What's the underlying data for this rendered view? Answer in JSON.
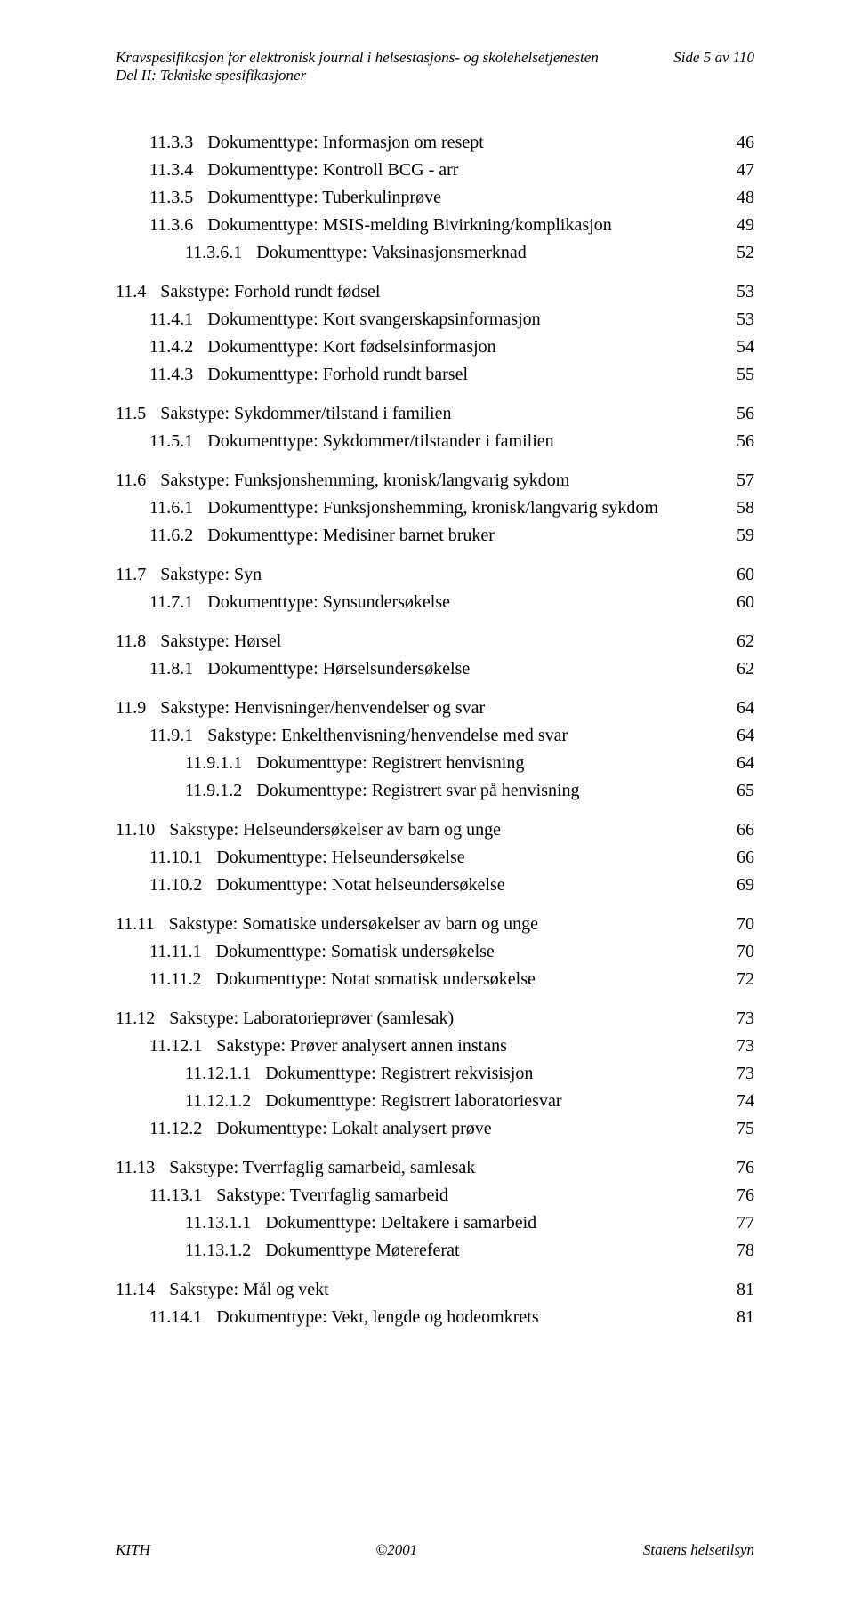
{
  "header": {
    "title_line1": "Kravspesifikasjon for elektronisk journal i helsestasjons- og skolehelsetjenesten",
    "title_line2": "Del II: Tekniske spesifikasjoner",
    "page_info": "Side 5 av 110"
  },
  "footer": {
    "left": "KITH",
    "center": "©2001",
    "right": "Statens helsetilsyn"
  },
  "toc": [
    {
      "entries": [
        {
          "lvl": 2,
          "num": "11.3.3",
          "title": "Dokumenttype: Informasjon om resept",
          "page": "46"
        },
        {
          "lvl": 2,
          "num": "11.3.4",
          "title": "Dokumenttype: Kontroll BCG - arr",
          "page": "47"
        },
        {
          "lvl": 2,
          "num": "11.3.5",
          "title": "Dokumenttype: Tuberkulinprøve",
          "page": "48"
        },
        {
          "lvl": 2,
          "num": "11.3.6",
          "title": "Dokumenttype: MSIS-melding Bivirkning/komplikasjon",
          "page": "49"
        },
        {
          "lvl": 3,
          "num": "11.3.6.1",
          "title": "Dokumenttype: Vaksinasjonsmerknad",
          "page": "52"
        }
      ]
    },
    {
      "entries": [
        {
          "lvl": 1,
          "num": "11.4",
          "title": "Sakstype: Forhold rundt fødsel",
          "page": "53"
        },
        {
          "lvl": 2,
          "num": "11.4.1",
          "title": "Dokumenttype: Kort svangerskapsinformasjon",
          "page": "53"
        },
        {
          "lvl": 2,
          "num": "11.4.2",
          "title": "Dokumenttype: Kort fødselsinformasjon",
          "page": "54"
        },
        {
          "lvl": 2,
          "num": "11.4.3",
          "title": "Dokumenttype: Forhold rundt barsel",
          "page": "55"
        }
      ]
    },
    {
      "entries": [
        {
          "lvl": 1,
          "num": "11.5",
          "title": "Sakstype: Sykdommer/tilstand i familien",
          "page": "56"
        },
        {
          "lvl": 2,
          "num": "11.5.1",
          "title": "Dokumenttype: Sykdommer/tilstander i familien",
          "page": "56"
        }
      ]
    },
    {
      "entries": [
        {
          "lvl": 1,
          "num": "11.6",
          "title": "Sakstype: Funksjonshemming, kronisk/langvarig sykdom",
          "page": "57"
        },
        {
          "lvl": 2,
          "num": "11.6.1",
          "title": "Dokumenttype: Funksjonshemming, kronisk/langvarig sykdom",
          "page": "58"
        },
        {
          "lvl": 2,
          "num": "11.6.2",
          "title": "Dokumenttype: Medisiner barnet bruker",
          "page": "59"
        }
      ]
    },
    {
      "entries": [
        {
          "lvl": 1,
          "num": "11.7",
          "title": "Sakstype: Syn",
          "page": "60"
        },
        {
          "lvl": 2,
          "num": "11.7.1",
          "title": "Dokumenttype: Synsundersøkelse",
          "page": "60"
        }
      ]
    },
    {
      "entries": [
        {
          "lvl": 1,
          "num": "11.8",
          "title": "Sakstype: Hørsel",
          "page": "62"
        },
        {
          "lvl": 2,
          "num": "11.8.1",
          "title": "Dokumenttype: Hørselsundersøkelse",
          "page": "62"
        }
      ]
    },
    {
      "entries": [
        {
          "lvl": 1,
          "num": "11.9",
          "title": "Sakstype: Henvisninger/henvendelser og svar",
          "page": "64"
        },
        {
          "lvl": 2,
          "num": "11.9.1",
          "title": "Sakstype: Enkelthenvisning/henvendelse med svar",
          "page": "64"
        },
        {
          "lvl": 3,
          "num": "11.9.1.1",
          "title": "Dokumenttype: Registrert henvisning",
          "page": "64"
        },
        {
          "lvl": 3,
          "num": "11.9.1.2",
          "title": "Dokumenttype: Registrert svar på henvisning",
          "page": "65"
        }
      ]
    },
    {
      "entries": [
        {
          "lvl": 1,
          "num": "11.10",
          "title": "Sakstype: Helseundersøkelser av barn og unge",
          "page": "66"
        },
        {
          "lvl": 2,
          "num": "11.10.1",
          "title": "Dokumenttype: Helseundersøkelse",
          "page": "66"
        },
        {
          "lvl": 2,
          "num": "11.10.2",
          "title": "Dokumenttype: Notat helseundersøkelse",
          "page": "69"
        }
      ]
    },
    {
      "entries": [
        {
          "lvl": 1,
          "num": "11.11",
          "title": "Sakstype: Somatiske undersøkelser av barn og unge",
          "page": "70"
        },
        {
          "lvl": 2,
          "num": "11.11.1",
          "title": "Dokumenttype: Somatisk undersøkelse",
          "page": "70"
        },
        {
          "lvl": 2,
          "num": "11.11.2",
          "title": "Dokumenttype: Notat somatisk undersøkelse",
          "page": "72"
        }
      ]
    },
    {
      "entries": [
        {
          "lvl": 1,
          "num": "11.12",
          "title": "Sakstype: Laboratorieprøver (samlesak)",
          "page": "73"
        },
        {
          "lvl": 2,
          "num": "11.12.1",
          "title": "Sakstype: Prøver analysert annen instans",
          "page": "73"
        },
        {
          "lvl": 3,
          "num": "11.12.1.1",
          "title": "Dokumenttype: Registrert rekvisisjon",
          "page": "73"
        },
        {
          "lvl": 3,
          "num": "11.12.1.2",
          "title": "Dokumenttype: Registrert laboratoriesvar",
          "page": "74"
        },
        {
          "lvl": 2,
          "num": "11.12.2",
          "title": "Dokumenttype: Lokalt analysert prøve",
          "page": "75"
        }
      ]
    },
    {
      "entries": [
        {
          "lvl": 1,
          "num": "11.13",
          "title": "Sakstype: Tverrfaglig samarbeid, samlesak",
          "page": "76"
        },
        {
          "lvl": 2,
          "num": "11.13.1",
          "title": "Sakstype: Tverrfaglig samarbeid",
          "page": "76"
        },
        {
          "lvl": 3,
          "num": "11.13.1.1",
          "title": "Dokumenttype: Deltakere i samarbeid",
          "page": "77"
        },
        {
          "lvl": 3,
          "num": "11.13.1.2",
          "title": "Dokumenttype Møtereferat",
          "page": "78"
        }
      ]
    },
    {
      "entries": [
        {
          "lvl": 1,
          "num": "11.14",
          "title": "Sakstype: Mål og vekt",
          "page": "81"
        },
        {
          "lvl": 2,
          "num": "11.14.1",
          "title": "Dokumenttype: Vekt, lengde og hodeomkrets",
          "page": "81"
        }
      ]
    }
  ]
}
